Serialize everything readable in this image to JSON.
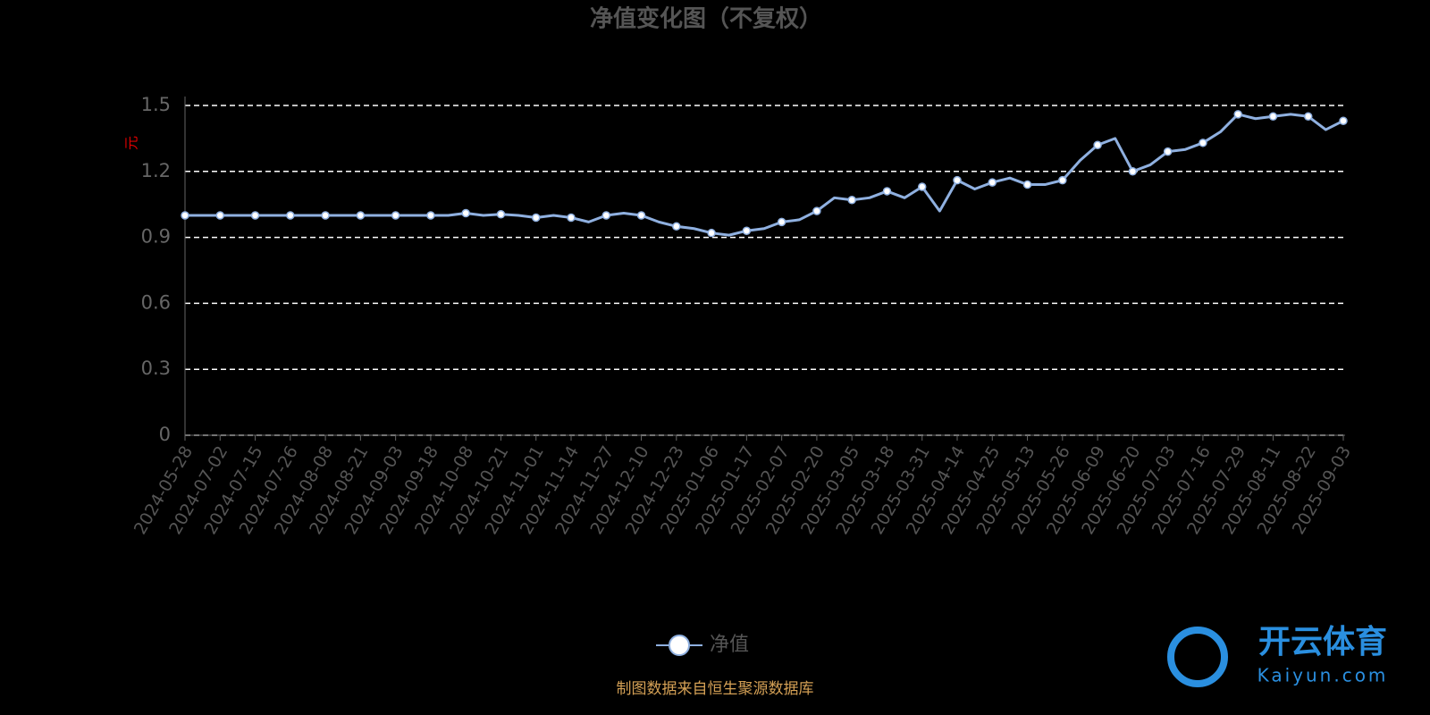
{
  "chart_data": {
    "type": "line",
    "title": "净值变化图（不复权）",
    "y_label": "元",
    "categories": [
      "2024-05-28",
      null,
      "2024-07-02",
      null,
      "2024-07-15",
      null,
      "2024-07-26",
      null,
      "2024-08-08",
      null,
      "2024-08-21",
      null,
      "2024-09-03",
      null,
      "2024-09-18",
      null,
      "2024-10-08",
      null,
      "2024-10-21",
      null,
      "2024-11-01",
      null,
      "2024-11-14",
      null,
      "2024-11-27",
      null,
      "2024-12-10",
      null,
      "2024-12-23",
      null,
      "2025-01-06",
      null,
      "2025-01-17",
      null,
      "2025-02-07",
      null,
      "2025-02-20",
      null,
      "2025-03-05",
      null,
      "2025-03-18",
      null,
      "2025-03-31",
      null,
      "2025-04-14",
      null,
      "2025-04-25",
      null,
      "2025-05-13",
      null,
      "2025-05-26",
      null,
      "2025-06-09",
      null,
      "2025-06-20",
      null,
      "2025-07-03",
      null,
      "2025-07-16",
      null,
      "2025-07-29",
      null,
      "2025-08-11",
      null,
      "2025-08-22",
      null,
      "2025-09-03"
    ],
    "series": [
      {
        "name": "净值",
        "color": "#8fb0e0",
        "values": [
          1.0,
          1.0,
          1.0,
          1.0,
          1.0,
          1.0,
          1.0,
          1.0,
          1.0,
          1.0,
          1.0,
          1.0,
          1.0,
          1.0,
          1.0,
          1.0,
          1.01,
          1.0,
          1.005,
          1.0,
          0.99,
          1.0,
          0.99,
          0.97,
          1.0,
          1.01,
          1.0,
          0.97,
          0.95,
          0.94,
          0.92,
          0.91,
          0.93,
          0.94,
          0.97,
          0.98,
          1.02,
          1.08,
          1.07,
          1.08,
          1.11,
          1.08,
          1.13,
          1.02,
          1.16,
          1.12,
          1.15,
          1.17,
          1.14,
          1.14,
          1.16,
          1.25,
          1.32,
          1.35,
          1.2,
          1.23,
          1.29,
          1.3,
          1.33,
          1.38,
          1.46,
          1.44,
          1.45,
          1.46,
          1.45,
          1.39,
          1.43
        ]
      }
    ],
    "ylim": [
      0,
      1.5
    ],
    "yticks": [
      0,
      0.3,
      0.6,
      0.9,
      1.2,
      1.5
    ],
    "grid": true,
    "source": "制图数据来自恒生聚源数据库",
    "watermark": {
      "brand": "开云体育",
      "url": "Kaiyun.com"
    }
  }
}
